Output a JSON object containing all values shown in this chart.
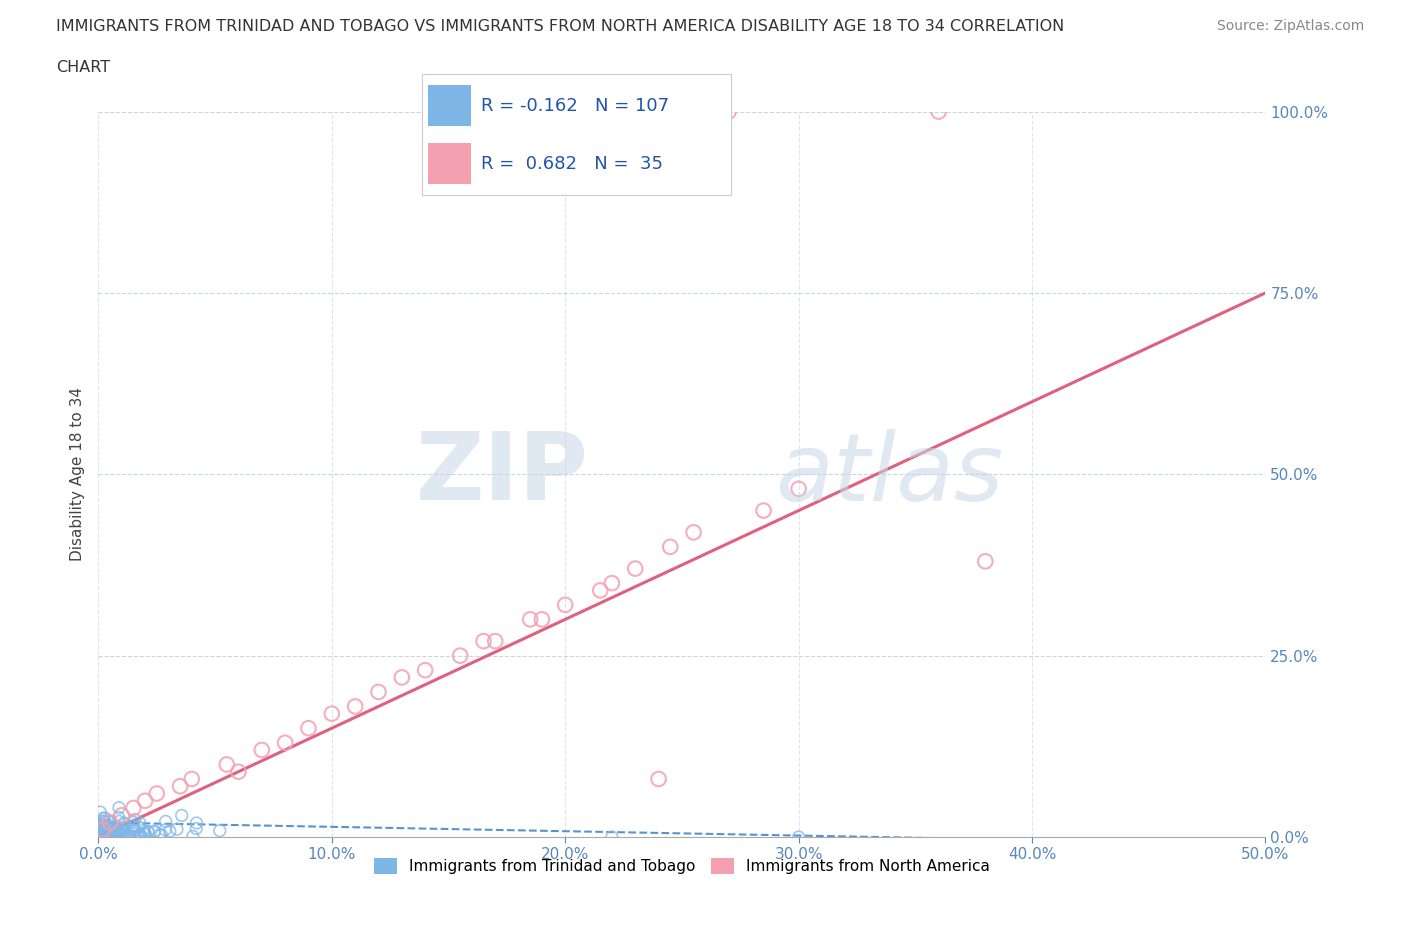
{
  "title_line1": "IMMIGRANTS FROM TRINIDAD AND TOBAGO VS IMMIGRANTS FROM NORTH AMERICA DISABILITY AGE 18 TO 34 CORRELATION",
  "title_line2": "CHART",
  "source_text": "Source: ZipAtlas.com",
  "ylabel": "Disability Age 18 to 34",
  "xlabel": "",
  "blue_R": -0.162,
  "blue_N": 107,
  "pink_R": 0.682,
  "pink_N": 35,
  "blue_color": "#7EB6E8",
  "pink_color": "#F4A0B0",
  "blue_line_color": "#4488CC",
  "pink_line_color": "#E06080",
  "watermark_zip": "ZIP",
  "watermark_atlas": "atlas",
  "xlim": [
    0.0,
    0.5
  ],
  "ylim": [
    0.0,
    1.0
  ],
  "xticks": [
    0.0,
    0.1,
    0.2,
    0.3,
    0.4,
    0.5
  ],
  "xticklabels": [
    "0.0%",
    "10.0%",
    "20.0%",
    "30.0%",
    "40.0%",
    "50.0%"
  ],
  "yticks": [
    0.0,
    0.25,
    0.5,
    0.75,
    1.0
  ],
  "yticklabels": [
    "0.0%",
    "25.0%",
    "50.0%",
    "75.0%",
    "100.0%"
  ],
  "legend_label_blue": "Immigrants from Trinidad and Tobago",
  "legend_label_pink": "Immigrants from North America",
  "pink_line_x0": 0.0,
  "pink_line_y0": 0.0,
  "pink_line_x1": 0.5,
  "pink_line_y1": 0.75,
  "blue_line_x0": 0.0,
  "blue_line_y0": 0.02,
  "blue_line_x1": 0.5,
  "blue_line_y1": -0.01
}
